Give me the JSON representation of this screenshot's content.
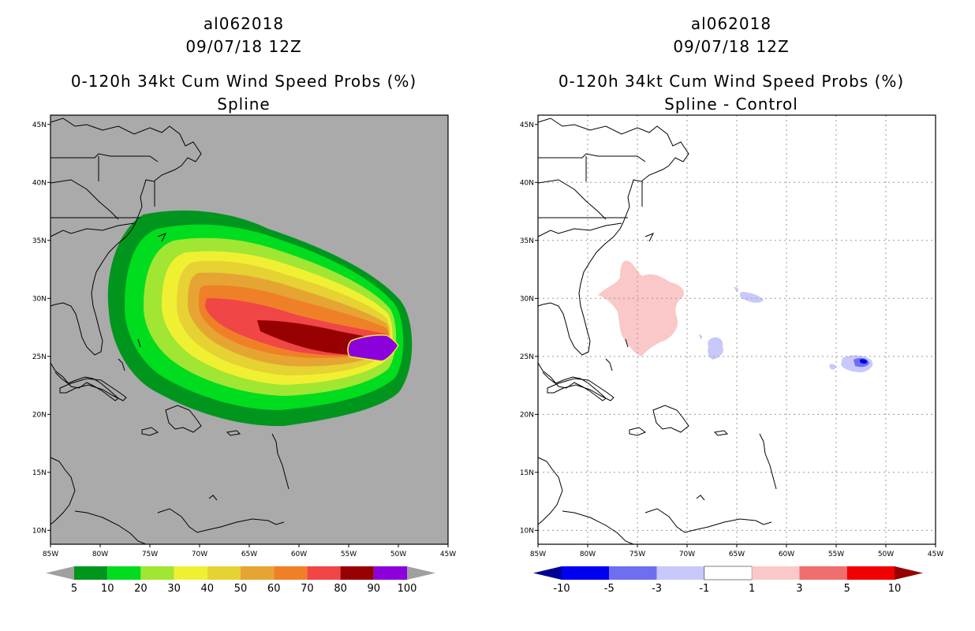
{
  "panels": [
    {
      "storm_id": "al062018",
      "datetime": "09/07/18 12Z",
      "product": "0-120h 34kt Cum Wind Speed Probs (%)",
      "subtitle": "Spline",
      "colorbar": {
        "labels": [
          "5",
          "10",
          "20",
          "30",
          "40",
          "50",
          "60",
          "70",
          "80",
          "90",
          "100"
        ],
        "colors": [
          "#a0a0a0",
          "#00961e",
          "#00dc1e",
          "#a0e632",
          "#f0f032",
          "#e6d232",
          "#e6a532",
          "#f08028",
          "#f04646",
          "#960000",
          "#8c00dc",
          "#a0a0a0"
        ]
      }
    },
    {
      "storm_id": "al062018",
      "datetime": "09/07/18 12Z",
      "product": "0-120h 34kt Cum Wind Speed Probs (%)",
      "subtitle": "Spline - Control",
      "colorbar": {
        "labels": [
          "-10",
          "-5",
          "-3",
          "-1",
          "1",
          "3",
          "5",
          "10"
        ],
        "colors": [
          "#000096",
          "#0000f0",
          "#6e6ef0",
          "#c8c8fa",
          "#ffffff",
          "#fac8c8",
          "#f06e6e",
          "#f00000",
          "#960000"
        ]
      }
    }
  ],
  "axes": {
    "lat_labels": [
      "45N",
      "40N",
      "35N",
      "30N",
      "25N",
      "20N",
      "15N",
      "10N"
    ],
    "lon_labels": [
      "85W",
      "80W",
      "75W",
      "70W",
      "65W",
      "60W",
      "55W",
      "50W",
      "45W"
    ]
  },
  "colors": {
    "ocean_background": "#aaaaaa",
    "contour_levels": [
      "#00961e",
      "#00dc1e",
      "#a0e632",
      "#f0f032",
      "#e6d232",
      "#e6a532",
      "#f08028",
      "#f04646",
      "#960000",
      "#8c00dc"
    ],
    "diff_positive": "#fac8c8",
    "diff_negative": [
      "#c8c8fa",
      "#6e6ef0",
      "#0000f0"
    ]
  }
}
